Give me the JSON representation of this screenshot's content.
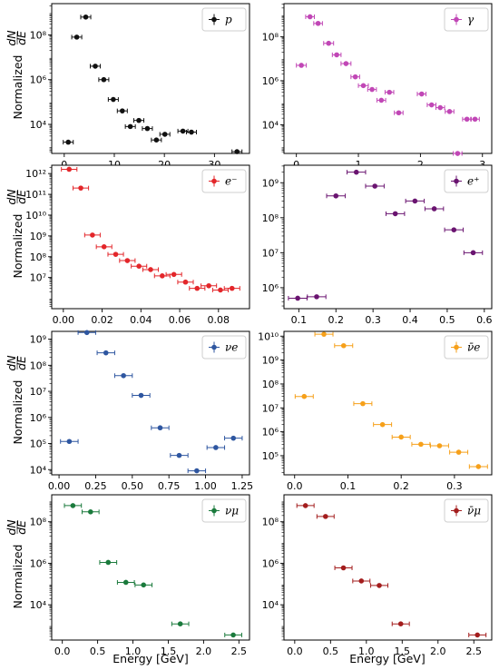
{
  "figure": {
    "ylabel": "Normalized",
    "ylabel_fraction": {
      "numerator": "dN",
      "denominator": "dE"
    },
    "xlabel": "Energy [GeV]"
  },
  "chart_data": [
    {
      "type": "scatter",
      "yscale": "log",
      "xlim": [
        -2.5,
        37
      ],
      "ylim_exp": [
        2.7,
        9.4
      ],
      "xticks": [
        0,
        10,
        20,
        30
      ],
      "yticks_exp": [
        4,
        6,
        8
      ],
      "legend": "p",
      "legend_position": "top-right",
      "color": "#111111",
      "series": [
        {
          "name": "p",
          "points": [
            {
              "x": 0.8,
              "y": 1600.0,
              "xerr": 1.0
            },
            {
              "x": 2.5,
              "y": 80000000.0,
              "xerr": 1.0
            },
            {
              "x": 4.3,
              "y": 630000000.0,
              "xerr": 1.0
            },
            {
              "x": 6.2,
              "y": 4000000.0,
              "xerr": 1.0
            },
            {
              "x": 7.9,
              "y": 1000000.0,
              "xerr": 1.0
            },
            {
              "x": 9.8,
              "y": 130000.0,
              "xerr": 1.0
            },
            {
              "x": 11.6,
              "y": 40000.0,
              "xerr": 1.0
            },
            {
              "x": 13.2,
              "y": 8000.0,
              "xerr": 1.0
            },
            {
              "x": 14.9,
              "y": 15000.0,
              "xerr": 1.0
            },
            {
              "x": 16.6,
              "y": 6500.0,
              "xerr": 1.0
            },
            {
              "x": 18.4,
              "y": 2000.0,
              "xerr": 1.0
            },
            {
              "x": 20.1,
              "y": 3600.0,
              "xerr": 1.0
            },
            {
              "x": 23.7,
              "y": 5000.0,
              "xerr": 1.0
            },
            {
              "x": 25.4,
              "y": 4500.0,
              "xerr": 1.0
            },
            {
              "x": 34.5,
              "y": 600.0,
              "xerr": 1.0
            }
          ]
        }
      ]
    },
    {
      "type": "scatter",
      "yscale": "log",
      "xlim": [
        -0.2,
        3.15
      ],
      "ylim_exp": [
        2.7,
        9.5
      ],
      "xticks": [
        0,
        1,
        2,
        3
      ],
      "yticks_exp": [
        4,
        6,
        8
      ],
      "legend": "γ",
      "legend_position": "top-right",
      "color": "#c147b6",
      "series": [
        {
          "name": "γ",
          "points": [
            {
              "x": 0.08,
              "y": 5000000.0,
              "xerr": 0.08
            },
            {
              "x": 0.22,
              "y": 800000000.0,
              "xerr": 0.07
            },
            {
              "x": 0.35,
              "y": 400000000.0,
              "xerr": 0.07
            },
            {
              "x": 0.52,
              "y": 50000000.0,
              "xerr": 0.08
            },
            {
              "x": 0.65,
              "y": 15000000.0,
              "xerr": 0.07
            },
            {
              "x": 0.8,
              "y": 6000000.0,
              "xerr": 0.08
            },
            {
              "x": 0.95,
              "y": 1500000.0,
              "xerr": 0.07
            },
            {
              "x": 1.08,
              "y": 600000.0,
              "xerr": 0.08
            },
            {
              "x": 1.22,
              "y": 400000.0,
              "xerr": 0.07
            },
            {
              "x": 1.37,
              "y": 130000.0,
              "xerr": 0.07
            },
            {
              "x": 1.5,
              "y": 300000.0,
              "xerr": 0.07
            },
            {
              "x": 1.65,
              "y": 35000.0,
              "xerr": 0.07
            },
            {
              "x": 2.02,
              "y": 250000.0,
              "xerr": 0.07
            },
            {
              "x": 2.18,
              "y": 80000.0,
              "xerr": 0.07
            },
            {
              "x": 2.32,
              "y": 60000.0,
              "xerr": 0.07
            },
            {
              "x": 2.47,
              "y": 40000.0,
              "xerr": 0.07
            },
            {
              "x": 2.6,
              "y": 500.0,
              "xerr": 0.07
            },
            {
              "x": 2.75,
              "y": 18000.0,
              "xerr": 0.07
            },
            {
              "x": 2.88,
              "y": 18000.0,
              "xerr": 0.07
            }
          ]
        }
      ]
    },
    {
      "type": "scatter",
      "yscale": "log",
      "xlim": [
        -0.006,
        0.096
      ],
      "ylim_exp": [
        5.5,
        12.4
      ],
      "xticks": [
        0.0,
        0.02,
        0.04,
        0.06,
        0.08
      ],
      "yticks_exp": [
        7,
        8,
        9,
        10,
        11,
        12
      ],
      "legend": "e⁻",
      "legend_position": "top-right",
      "color": "#e3262a",
      "series": [
        {
          "name": "e⁻",
          "points": [
            {
              "x": 0.003,
              "y": 1600000000000.0,
              "xerr": 0.004
            },
            {
              "x": 0.009,
              "y": 200000000000.0,
              "xerr": 0.004
            },
            {
              "x": 0.015,
              "y": 1100000000.0,
              "xerr": 0.004
            },
            {
              "x": 0.021,
              "y": 300000000.0,
              "xerr": 0.004
            },
            {
              "x": 0.027,
              "y": 130000000.0,
              "xerr": 0.004
            },
            {
              "x": 0.033,
              "y": 65000000.0,
              "xerr": 0.004
            },
            {
              "x": 0.039,
              "y": 35000000.0,
              "xerr": 0.004
            },
            {
              "x": 0.045,
              "y": 24000000.0,
              "xerr": 0.004
            },
            {
              "x": 0.051,
              "y": 12000000.0,
              "xerr": 0.004
            },
            {
              "x": 0.057,
              "y": 14000000.0,
              "xerr": 0.004
            },
            {
              "x": 0.063,
              "y": 6000000.0,
              "xerr": 0.004
            },
            {
              "x": 0.069,
              "y": 3000000.0,
              "xerr": 0.004
            },
            {
              "x": 0.075,
              "y": 4000000.0,
              "xerr": 0.004
            },
            {
              "x": 0.081,
              "y": 2500000.0,
              "xerr": 0.004
            },
            {
              "x": 0.087,
              "y": 3000000.0,
              "xerr": 0.004
            }
          ]
        }
      ]
    },
    {
      "type": "scatter",
      "yscale": "log",
      "xlim": [
        0.06,
        0.62
      ],
      "ylim_exp": [
        5.4,
        9.5
      ],
      "xticks": [
        0.1,
        0.2,
        0.3,
        0.4,
        0.5,
        0.6
      ],
      "yticks_exp": [
        6,
        7,
        8,
        9
      ],
      "legend": "e⁺",
      "legend_position": "top-right",
      "color": "#6a1470",
      "series": [
        {
          "name": "e⁺",
          "points": [
            {
              "x": 0.097,
              "y": 500000.0,
              "xerr": 0.025
            },
            {
              "x": 0.148,
              "y": 550000.0,
              "xerr": 0.025
            },
            {
              "x": 0.2,
              "y": 420000000.0,
              "xerr": 0.025
            },
            {
              "x": 0.255,
              "y": 2000000000.0,
              "xerr": 0.025
            },
            {
              "x": 0.305,
              "y": 800000000.0,
              "xerr": 0.025
            },
            {
              "x": 0.36,
              "y": 130000000.0,
              "xerr": 0.025
            },
            {
              "x": 0.413,
              "y": 300000000.0,
              "xerr": 0.025
            },
            {
              "x": 0.465,
              "y": 180000000.0,
              "xerr": 0.025
            },
            {
              "x": 0.518,
              "y": 45000000.0,
              "xerr": 0.025
            },
            {
              "x": 0.57,
              "y": 10000000.0,
              "xerr": 0.025
            }
          ]
        }
      ]
    },
    {
      "type": "scatter",
      "yscale": "log",
      "xlim": [
        -0.05,
        1.3
      ],
      "ylim_exp": [
        3.8,
        9.3
      ],
      "xticks": [
        0.0,
        0.25,
        0.5,
        0.75,
        1.0,
        1.25
      ],
      "yticks_exp": [
        4,
        5,
        6,
        7,
        8,
        9
      ],
      "legend": "νe",
      "legend_position": "top-right",
      "color": "#2e56a0",
      "series": [
        {
          "name": "νe",
          "points": [
            {
              "x": 0.07,
              "y": 120000.0,
              "xerr": 0.06
            },
            {
              "x": 0.19,
              "y": 1800000000.0,
              "xerr": 0.06
            },
            {
              "x": 0.32,
              "y": 300000000.0,
              "xerr": 0.06
            },
            {
              "x": 0.44,
              "y": 40000000.0,
              "xerr": 0.06
            },
            {
              "x": 0.56,
              "y": 7000000.0,
              "xerr": 0.06
            },
            {
              "x": 0.69,
              "y": 400000.0,
              "xerr": 0.06
            },
            {
              "x": 0.82,
              "y": 35000.0,
              "xerr": 0.06
            },
            {
              "x": 0.94,
              "y": 9000.0,
              "xerr": 0.06
            },
            {
              "x": 1.07,
              "y": 70000.0,
              "xerr": 0.06
            },
            {
              "x": 1.19,
              "y": 160000.0,
              "xerr": 0.06
            }
          ]
        }
      ]
    },
    {
      "type": "scatter",
      "yscale": "log",
      "xlim": [
        -0.02,
        0.37
      ],
      "ylim_exp": [
        4.2,
        10.2
      ],
      "xticks": [
        0.0,
        0.1,
        0.2,
        0.3
      ],
      "yticks_exp": [
        5,
        6,
        7,
        8,
        9,
        10
      ],
      "legend": "ν̄e",
      "legend_position": "top-right",
      "color": "#f6a01a",
      "series": [
        {
          "name": "ν̄e",
          "points": [
            {
              "x": 0.018,
              "y": 30000000.0,
              "xerr": 0.017
            },
            {
              "x": 0.055,
              "y": 12000000000.0,
              "xerr": 0.017
            },
            {
              "x": 0.092,
              "y": 4000000000.0,
              "xerr": 0.017
            },
            {
              "x": 0.128,
              "y": 15000000.0,
              "xerr": 0.017
            },
            {
              "x": 0.165,
              "y": 2000000.0,
              "xerr": 0.017
            },
            {
              "x": 0.2,
              "y": 600000.0,
              "xerr": 0.017
            },
            {
              "x": 0.237,
              "y": 300000.0,
              "xerr": 0.017
            },
            {
              "x": 0.272,
              "y": 260000.0,
              "xerr": 0.017
            },
            {
              "x": 0.308,
              "y": 140000.0,
              "xerr": 0.017
            },
            {
              "x": 0.345,
              "y": 35000.0,
              "xerr": 0.017
            }
          ]
        }
      ]
    },
    {
      "type": "scatter",
      "yscale": "log",
      "xlim": [
        -0.15,
        2.65
      ],
      "ylim_exp": [
        2.3,
        9.3
      ],
      "xticks": [
        0.0,
        0.5,
        1.0,
        1.5,
        2.0,
        2.5
      ],
      "yticks_exp": [
        4,
        6,
        8
      ],
      "legend": "νμ",
      "legend_position": "top-right",
      "color": "#1a7a3c",
      "series": [
        {
          "name": "νμ",
          "points": [
            {
              "x": 0.15,
              "y": 600000000.0,
              "xerr": 0.12
            },
            {
              "x": 0.4,
              "y": 300000000.0,
              "xerr": 0.12
            },
            {
              "x": 0.65,
              "y": 1100000.0,
              "xerr": 0.12
            },
            {
              "x": 0.9,
              "y": 120000.0,
              "xerr": 0.12
            },
            {
              "x": 1.15,
              "y": 90000.0,
              "xerr": 0.12
            },
            {
              "x": 1.67,
              "y": 1200.0,
              "xerr": 0.12
            },
            {
              "x": 2.42,
              "y": 350.0,
              "xerr": 0.12
            }
          ]
        }
      ]
    },
    {
      "type": "scatter",
      "yscale": "log",
      "xlim": [
        -0.15,
        2.75
      ],
      "ylim_exp": [
        2.3,
        9.3
      ],
      "xticks": [
        0.0,
        0.5,
        1.0,
        1.5,
        2.0,
        2.5
      ],
      "yticks_exp": [
        4,
        6,
        8
      ],
      "legend": "ν̄μ",
      "legend_position": "top-right",
      "color": "#a31d1d",
      "series": [
        {
          "name": "ν̄μ",
          "points": [
            {
              "x": 0.15,
              "y": 600000000.0,
              "xerr": 0.12
            },
            {
              "x": 0.43,
              "y": 180000000.0,
              "xerr": 0.12
            },
            {
              "x": 0.68,
              "y": 600000.0,
              "xerr": 0.12
            },
            {
              "x": 0.93,
              "y": 140000.0,
              "xerr": 0.12
            },
            {
              "x": 1.18,
              "y": 85000.0,
              "xerr": 0.12
            },
            {
              "x": 1.48,
              "y": 1200.0,
              "xerr": 0.12
            },
            {
              "x": 2.55,
              "y": 350.0,
              "xerr": 0.12
            }
          ]
        }
      ]
    }
  ]
}
